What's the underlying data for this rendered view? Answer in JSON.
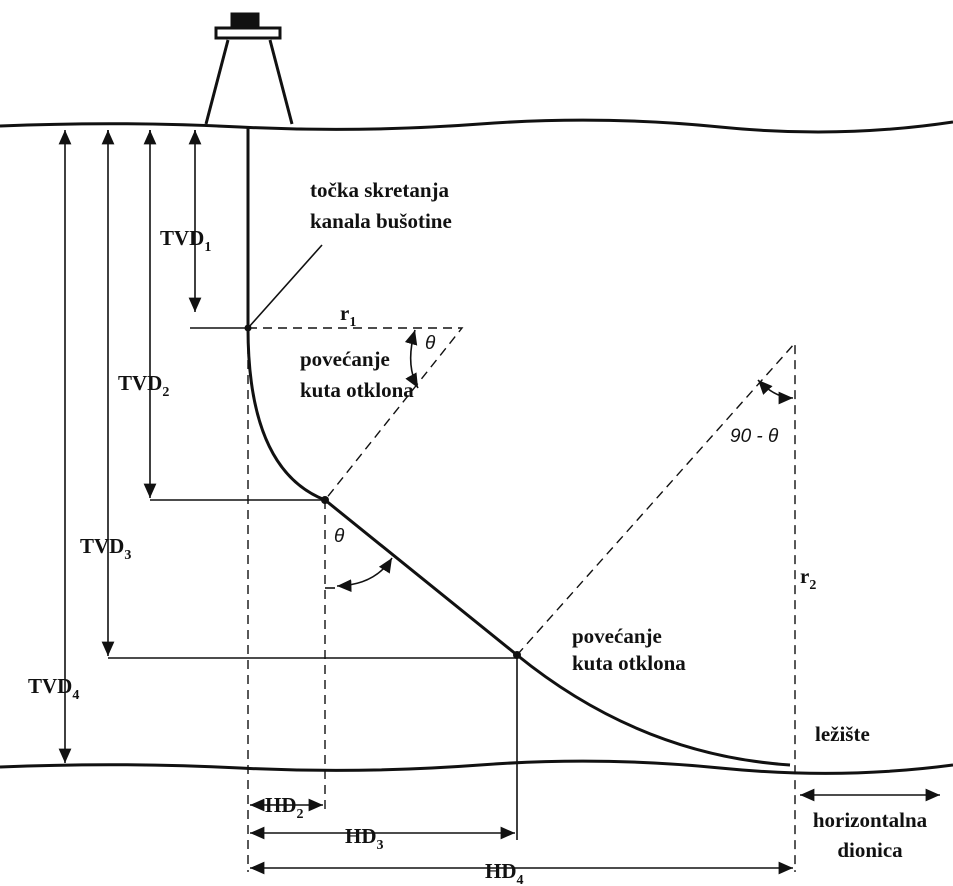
{
  "labels": {
    "kick_off": [
      "točka skretanja",
      "kanala bušotine"
    ],
    "tvd1": {
      "text": "TVD",
      "sub": "1"
    },
    "tvd2": {
      "text": "TVD",
      "sub": "2"
    },
    "tvd3": {
      "text": "TVD",
      "sub": "3"
    },
    "tvd4": {
      "text": "TVD",
      "sub": "4"
    },
    "r1": {
      "text": "r",
      "sub": "1"
    },
    "r2": {
      "text": "r",
      "sub": "2"
    },
    "theta1": "θ",
    "theta2": "θ",
    "ninety_minus_theta": "90 - θ",
    "build1": [
      "povećanje",
      "kuta otklona"
    ],
    "build2": [
      "povećanje",
      "kuta otklona"
    ],
    "reservoir": "ležište",
    "hd2": {
      "text": "HD",
      "sub": "2"
    },
    "hd3": {
      "text": "HD",
      "sub": "3"
    },
    "hd4": {
      "text": "HD",
      "sub": "4"
    },
    "horizontal": [
      "horizontalna",
      "dionica"
    ]
  }
}
